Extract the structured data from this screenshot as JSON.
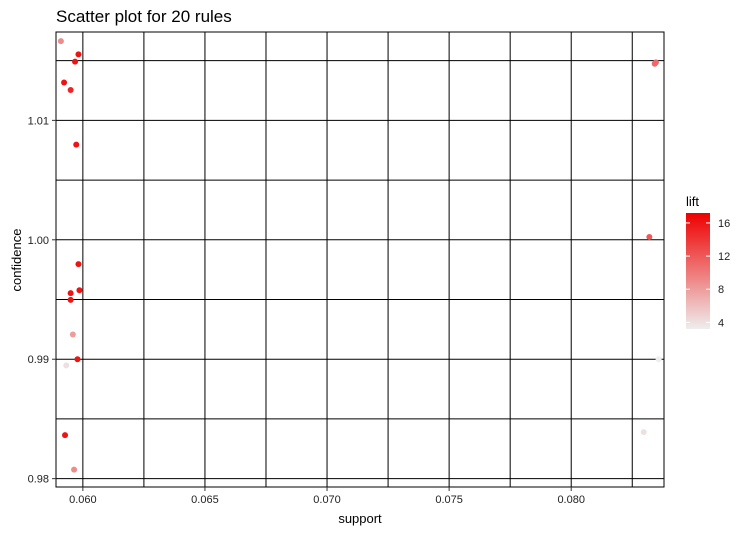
{
  "chart_data": {
    "type": "scatter",
    "title": "Scatter plot for 20 rules",
    "xlabel": "support",
    "ylabel": "confidence",
    "xlim": [
      0.0589,
      0.0838
    ],
    "ylim": [
      0.9793,
      1.0174
    ],
    "x_ticks": [
      0.06,
      0.065,
      0.07,
      0.075,
      0.08
    ],
    "x_tick_labels": [
      "0.060",
      "0.065",
      "0.070",
      "0.075",
      "0.080"
    ],
    "y_ticks": [
      0.98,
      0.99,
      1.0,
      1.01
    ],
    "y_tick_labels": [
      "0.98",
      "0.99",
      "1.00",
      "1.01"
    ],
    "grid": true,
    "color_scale": {
      "name": "lift",
      "min": 3.2,
      "max": 17.2,
      "low_color": "#eeeeee",
      "high_color": "#ee0000",
      "ticks": [
        4,
        8,
        12,
        16
      ],
      "tick_labels": [
        "4",
        "8",
        "12",
        "16"
      ]
    },
    "legend_position": "right",
    "points": [
      {
        "support": 0.0591,
        "confidence": 1.01664,
        "lift": 9
      },
      {
        "support": 0.05982,
        "confidence": 1.01553,
        "lift": 16
      },
      {
        "support": 0.05968,
        "confidence": 1.01492,
        "lift": 16
      },
      {
        "support": 0.05923,
        "confidence": 1.01317,
        "lift": 16
      },
      {
        "support": 0.0595,
        "confidence": 1.01254,
        "lift": 15
      },
      {
        "support": 0.05973,
        "confidence": 1.00797,
        "lift": 16
      },
      {
        "support": 0.05982,
        "confidence": 0.99796,
        "lift": 16
      },
      {
        "support": 0.05986,
        "confidence": 0.99578,
        "lift": 16
      },
      {
        "support": 0.0595,
        "confidence": 0.99553,
        "lift": 16
      },
      {
        "support": 0.0595,
        "confidence": 0.99497,
        "lift": 16
      },
      {
        "support": 0.05959,
        "confidence": 0.99207,
        "lift": 8
      },
      {
        "support": 0.05978,
        "confidence": 0.99,
        "lift": 16
      },
      {
        "support": 0.05932,
        "confidence": 0.98948,
        "lift": 4
      },
      {
        "support": 0.05927,
        "confidence": 0.98364,
        "lift": 16
      },
      {
        "support": 0.05964,
        "confidence": 0.98075,
        "lift": 9
      },
      {
        "support": 0.08347,
        "confidence": 1.01486,
        "lift": 11
      },
      {
        "support": 0.08342,
        "confidence": 1.01474,
        "lift": 11
      },
      {
        "support": 0.0832,
        "confidence": 1.00023,
        "lift": 12
      },
      {
        "support": 0.08358,
        "confidence": 0.99,
        "lift": 3.2
      },
      {
        "support": 0.08297,
        "confidence": 0.9839,
        "lift": 4
      }
    ]
  }
}
